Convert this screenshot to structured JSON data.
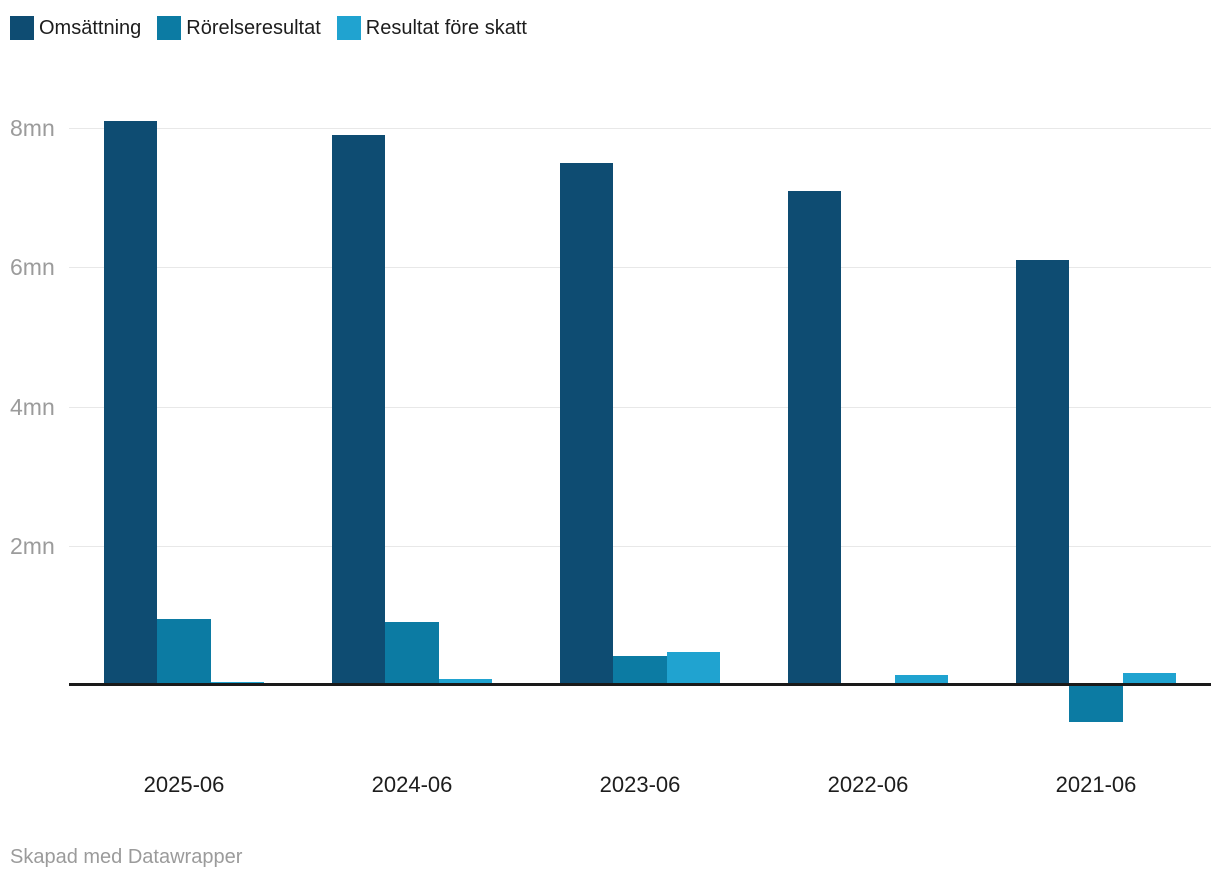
{
  "chart_data": {
    "type": "bar",
    "title": "",
    "xlabel": "",
    "ylabel": "",
    "unit": "mn",
    "grid": true,
    "legend_position": "top-left",
    "baseline_value": 0,
    "ylim": [
      -0.8,
      8.5
    ],
    "categories": [
      "2025-06",
      "2024-06",
      "2023-06",
      "2022-06",
      "2021-06"
    ],
    "series": [
      {
        "name": "Omsättning",
        "color": "#0e4c72",
        "values": [
          8.1,
          7.9,
          7.5,
          7.1,
          6.1
        ]
      },
      {
        "name": "Rörelseresultat",
        "color": "#0c7ba3",
        "values": [
          0.95,
          0.9,
          0.42,
          0,
          -0.53
        ]
      },
      {
        "name": "Resultat före skatt",
        "color": "#20a3d0",
        "values": [
          0.05,
          0.08,
          0.47,
          0.15,
          0.17
        ]
      }
    ],
    "y_ticks": [
      {
        "value": 2,
        "label": "2mn"
      },
      {
        "value": 4,
        "label": "4mn"
      },
      {
        "value": 6,
        "label": "6mn"
      },
      {
        "value": 8,
        "label": "8mn"
      }
    ]
  },
  "footer": {
    "credit": "Skapad med Datawrapper"
  },
  "colors": {
    "background": "#ffffff",
    "grid": "#e8e8e8",
    "baseline": "#1a1a1a",
    "text_dark": "#1d1d1d",
    "text_muted": "#9b9b9b"
  }
}
